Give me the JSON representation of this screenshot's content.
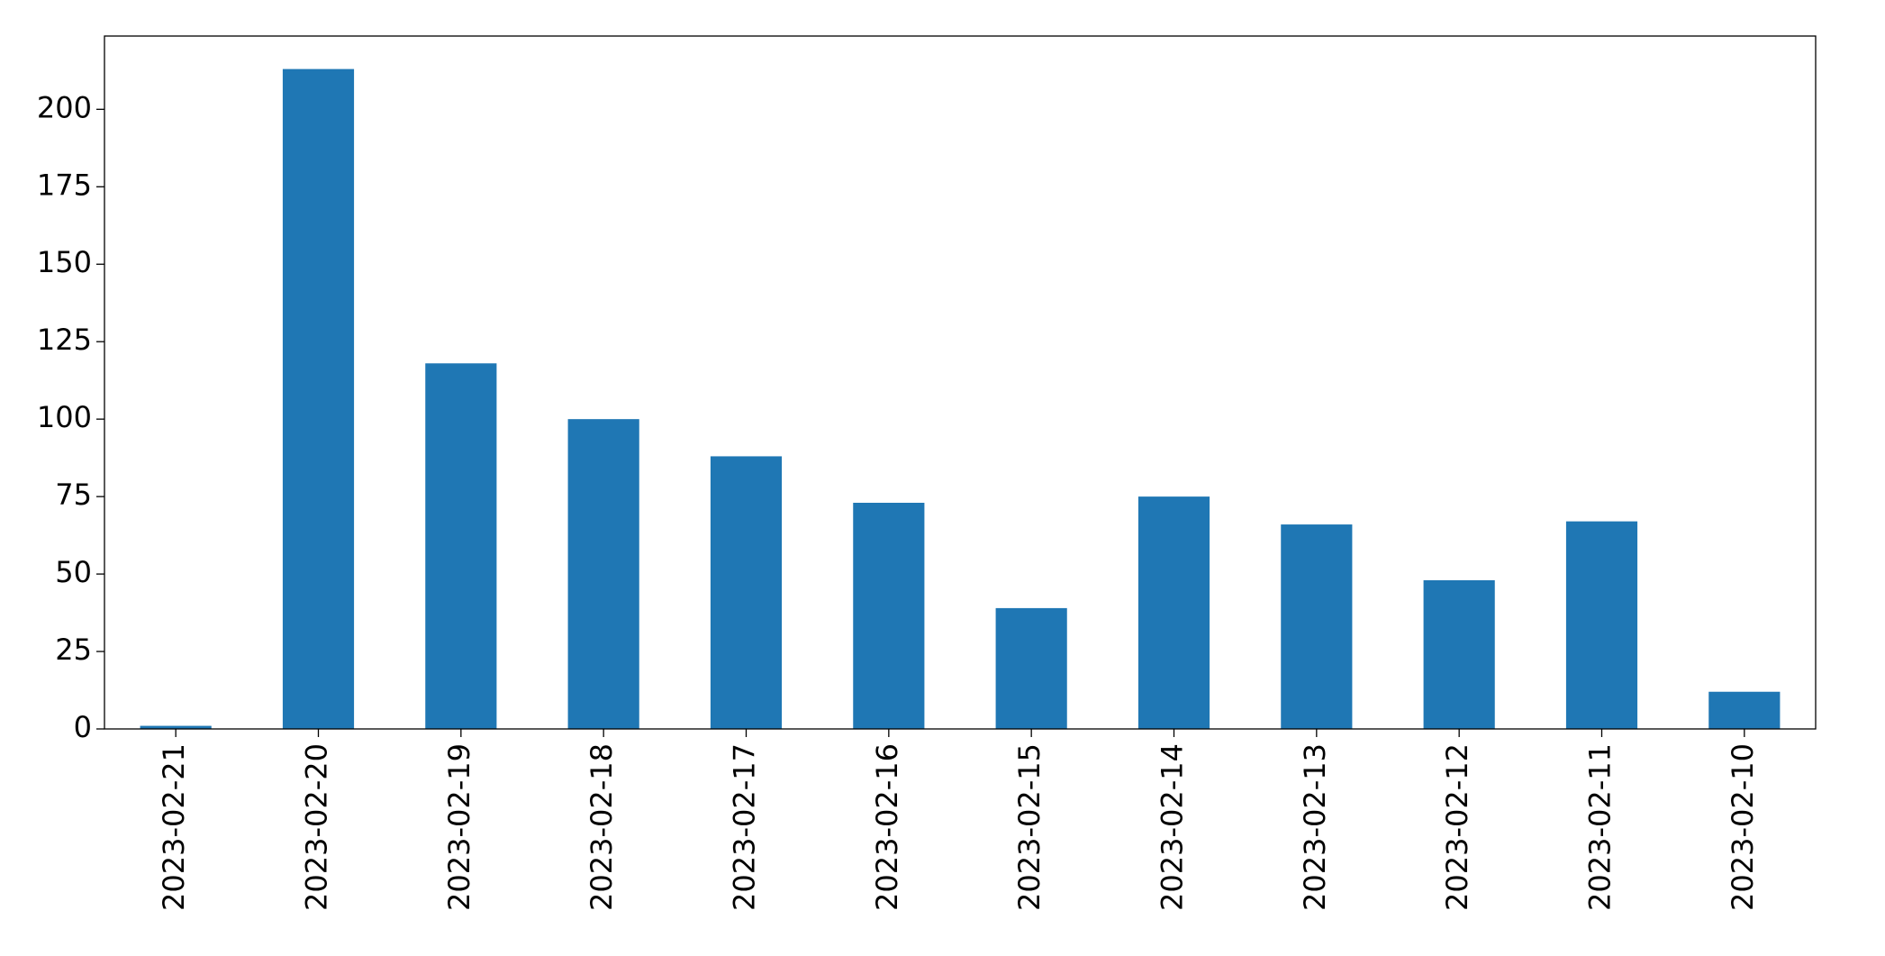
{
  "chart_data": {
    "type": "bar",
    "categories": [
      "2023-02-21",
      "2023-02-20",
      "2023-02-19",
      "2023-02-18",
      "2023-02-17",
      "2023-02-16",
      "2023-02-15",
      "2023-02-14",
      "2023-02-13",
      "2023-02-12",
      "2023-02-11",
      "2023-02-10"
    ],
    "values": [
      1,
      213,
      118,
      100,
      88,
      73,
      39,
      75,
      66,
      48,
      67,
      12
    ],
    "color": "#1f77b4",
    "ylim": [
      0,
      223.65
    ],
    "yticks": [
      0,
      25,
      50,
      75,
      100,
      125,
      150,
      175,
      200
    ],
    "grid": false
  }
}
